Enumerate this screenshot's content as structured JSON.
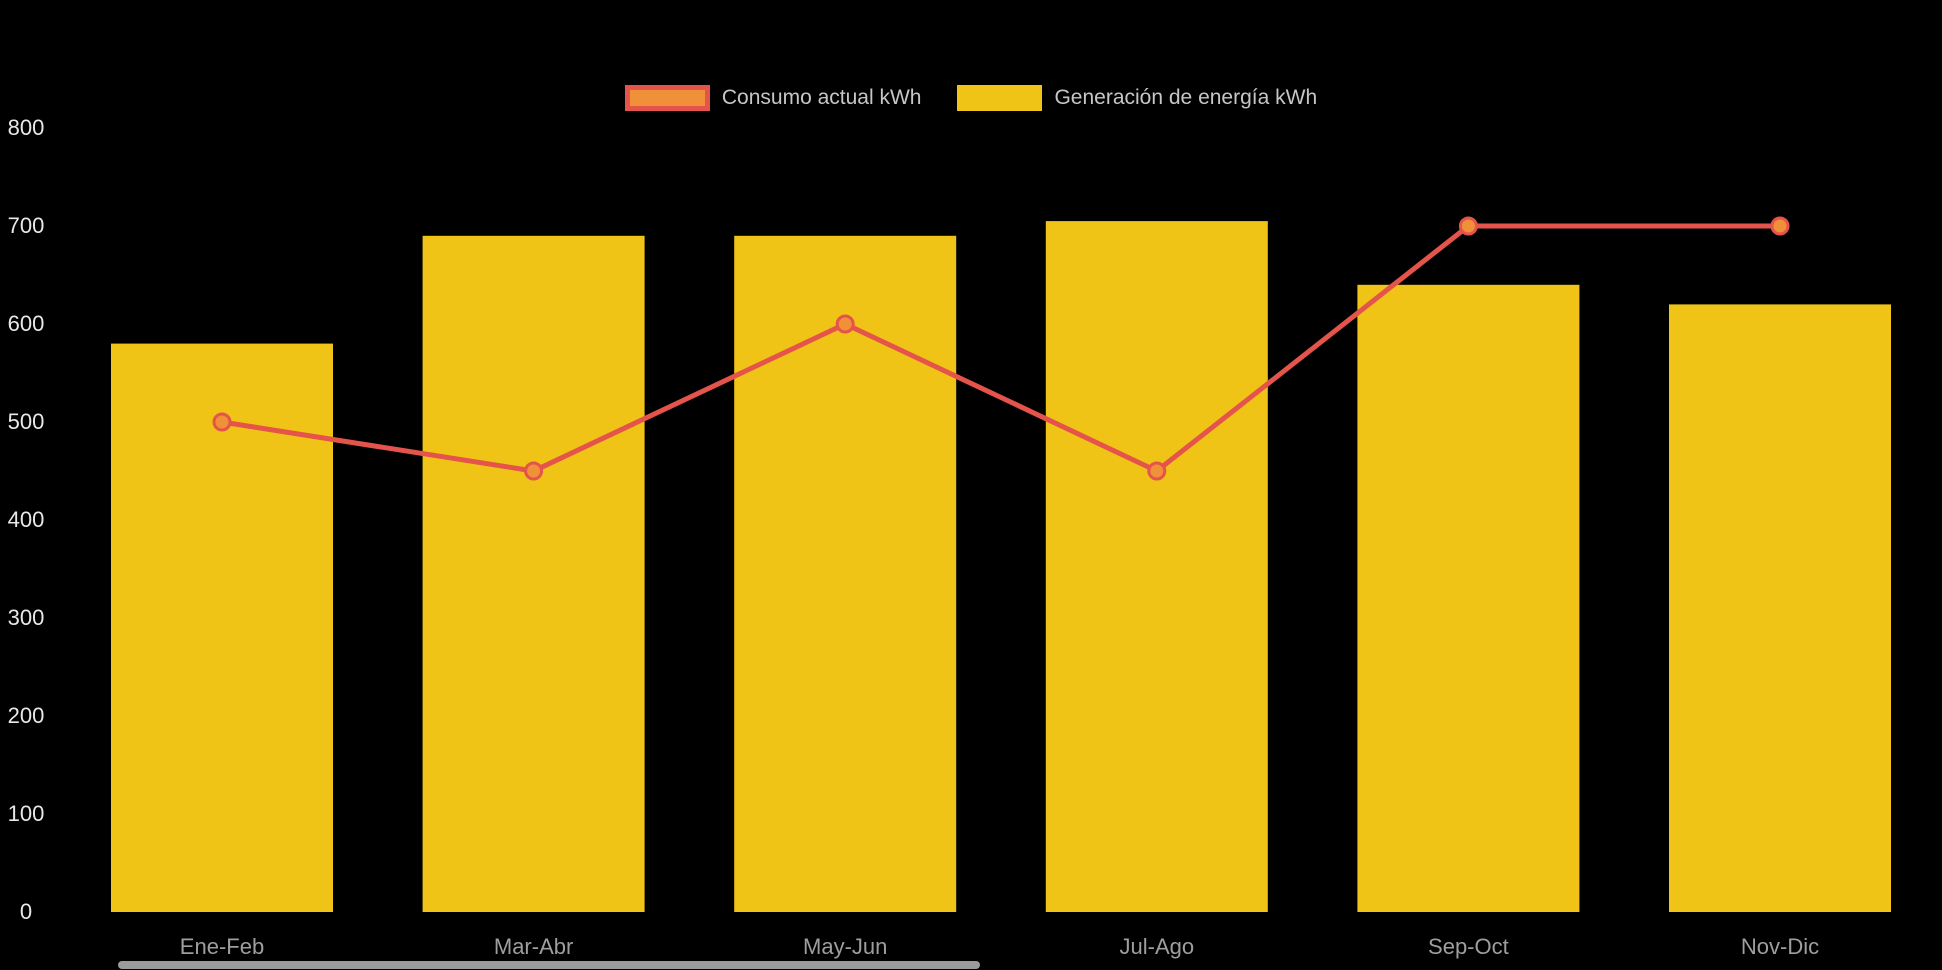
{
  "chart_data": {
    "type": "combo",
    "title": "",
    "categories": [
      "Ene-Feb",
      "Mar-Abr",
      "May-Jun",
      "Jul-Ago",
      "Sep-Oct",
      "Nov-Dic"
    ],
    "series": [
      {
        "name": "Consumo actual kWh",
        "type": "line",
        "values": [
          500,
          450,
          600,
          450,
          700,
          700
        ],
        "line_color": "#e5544b",
        "marker_fill": "#f0913a",
        "marker_stroke": "#e5544b"
      },
      {
        "name": "Generación de energía kWh",
        "type": "bar",
        "values": [
          580,
          690,
          690,
          705,
          640,
          620
        ],
        "color": "#f0c417"
      }
    ],
    "xlabel": "",
    "ylabel": "",
    "ylim": [
      0,
      800
    ],
    "y_ticks": [
      0,
      100,
      200,
      300,
      400,
      500,
      600,
      700,
      800
    ],
    "grid": false,
    "legend_position": "top",
    "background": "#000000",
    "y_tick_color": "#e8e8e8",
    "x_tick_color": "#9e9e9e"
  },
  "legend": {
    "items": [
      {
        "label": "Consumo actual kWh",
        "swatch_fill": "#f0913a",
        "swatch_border": "#e5544b"
      },
      {
        "label": "Generación de energía kWh",
        "swatch_fill": "#f0c417",
        "swatch_border": "#f0c417"
      }
    ]
  },
  "scrollbar": {
    "present": true,
    "color": "#9b9b9b"
  }
}
